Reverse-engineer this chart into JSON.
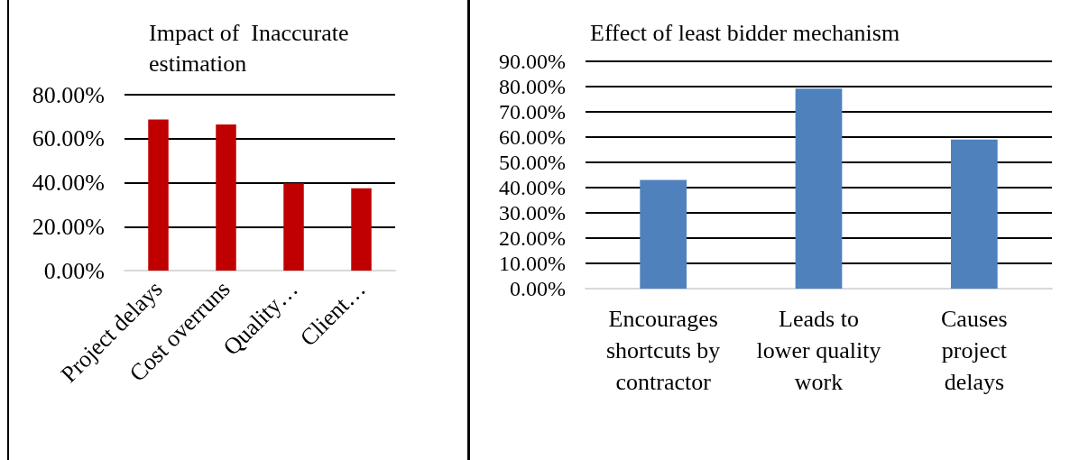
{
  "chart_data": [
    {
      "type": "bar",
      "title": "Impact of  Inaccurate\nestimation",
      "categories": [
        "Project delays",
        "Cost overruns",
        "Quality…",
        "Client…"
      ],
      "values": [
        68.7,
        66.5,
        39.7,
        37.4
      ],
      "color": "#c00000",
      "ylim": [
        0,
        80
      ],
      "yticks": [
        {
          "value": 0,
          "label": "0.00%"
        },
        {
          "value": 20,
          "label": "20.00%"
        },
        {
          "value": 40,
          "label": "40.00%"
        },
        {
          "value": 60,
          "label": "60.00%"
        },
        {
          "value": 80,
          "label": "80.00%"
        }
      ],
      "grid": true
    },
    {
      "type": "bar",
      "title": "Effect of least bidder mechanism",
      "categories": [
        "Encourages\nshortcuts by\ncontractor",
        "Leads to\nlower quality\nwork",
        "Causes\nproject\ndelays"
      ],
      "values": [
        43,
        79.2,
        59
      ],
      "color": "#4f81bd",
      "ylim": [
        0,
        90
      ],
      "yticks": [
        {
          "value": 0,
          "label": "0.00%"
        },
        {
          "value": 10,
          "label": "10.00%"
        },
        {
          "value": 20,
          "label": "20.00%"
        },
        {
          "value": 30,
          "label": "30.00%"
        },
        {
          "value": 40,
          "label": "40.00%"
        },
        {
          "value": 50,
          "label": "50.00%"
        },
        {
          "value": 60,
          "label": "60.00%"
        },
        {
          "value": 70,
          "label": "70.00%"
        },
        {
          "value": 80,
          "label": "80.00%"
        },
        {
          "value": 90,
          "label": "90.00%"
        }
      ],
      "grid": true
    }
  ]
}
